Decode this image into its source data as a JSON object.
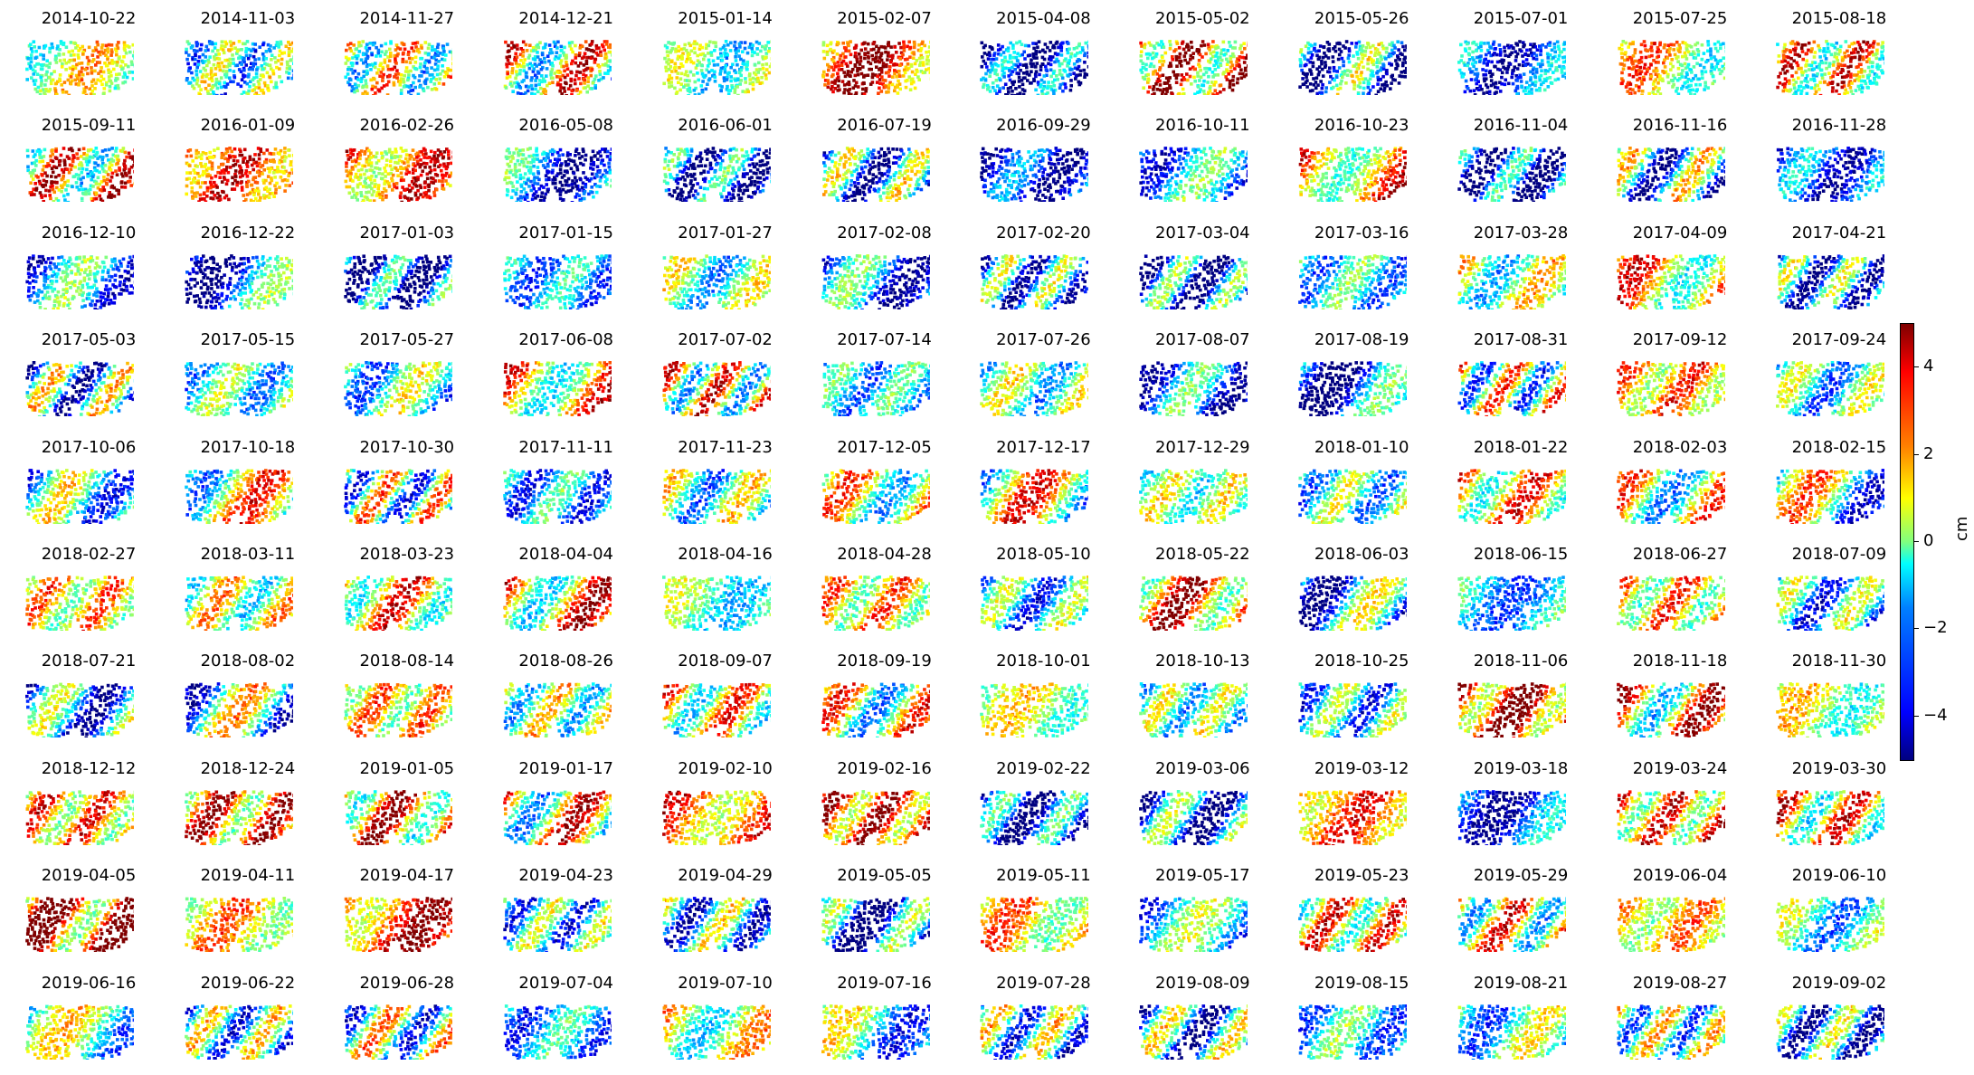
{
  "chart_data": {
    "type": "heatmap",
    "colormap": "jet",
    "grid": false,
    "panel_titles": [
      "2014-10-22",
      "2014-11-03",
      "2014-11-27",
      "2014-12-21",
      "2015-01-14",
      "2015-02-07",
      "2015-04-08",
      "2015-05-02",
      "2015-05-26",
      "2015-07-01",
      "2015-07-25",
      "2015-08-18",
      "2015-09-11",
      "2016-01-09",
      "2016-02-26",
      "2016-05-08",
      "2016-06-01",
      "2016-07-19",
      "2016-09-29",
      "2016-10-11",
      "2016-10-23",
      "2016-11-04",
      "2016-11-16",
      "2016-11-28",
      "2016-12-10",
      "2016-12-22",
      "2017-01-03",
      "2017-01-15",
      "2017-01-27",
      "2017-02-08",
      "2017-02-20",
      "2017-03-04",
      "2017-03-16",
      "2017-03-28",
      "2017-04-09",
      "2017-04-21",
      "2017-05-03",
      "2017-05-15",
      "2017-05-27",
      "2017-06-08",
      "2017-07-02",
      "2017-07-14",
      "2017-07-26",
      "2017-08-07",
      "2017-08-19",
      "2017-08-31",
      "2017-09-12",
      "2017-09-24",
      "2017-10-06",
      "2017-10-18",
      "2017-10-30",
      "2017-11-11",
      "2017-11-23",
      "2017-12-05",
      "2017-12-17",
      "2017-12-29",
      "2018-01-10",
      "2018-01-22",
      "2018-02-03",
      "2018-02-15",
      "2018-02-27",
      "2018-03-11",
      "2018-03-23",
      "2018-04-04",
      "2018-04-16",
      "2018-04-28",
      "2018-05-10",
      "2018-05-22",
      "2018-06-03",
      "2018-06-15",
      "2018-06-27",
      "2018-07-09",
      "2018-07-21",
      "2018-08-02",
      "2018-08-14",
      "2018-08-26",
      "2018-09-07",
      "2018-09-19",
      "2018-10-01",
      "2018-10-13",
      "2018-10-25",
      "2018-11-06",
      "2018-11-18",
      "2018-11-30",
      "2018-12-12",
      "2018-12-24",
      "2019-01-05",
      "2019-01-17",
      "2019-02-10",
      "2019-02-16",
      "2019-02-22",
      "2019-03-06",
      "2019-03-12",
      "2019-03-18",
      "2019-03-24",
      "2019-03-30",
      "2019-04-05",
      "2019-04-11",
      "2019-04-17",
      "2019-04-23",
      "2019-04-29",
      "2019-05-05",
      "2019-05-11",
      "2019-05-17",
      "2019-05-23",
      "2019-05-29",
      "2019-06-04",
      "2019-06-10",
      "2019-06-16",
      "2019-06-22",
      "2019-06-28",
      "2019-07-04",
      "2019-07-10",
      "2019-07-16",
      "2019-07-28",
      "2019-08-09",
      "2019-08-15",
      "2019-08-21",
      "2019-08-27",
      "2019-09-02"
    ],
    "panel_mean_cm": [
      0.5,
      -1.0,
      0.5,
      1.0,
      -0.5,
      3.0,
      -3.5,
      2.5,
      -2.5,
      -3.0,
      1.0,
      1.5,
      1.5,
      3.0,
      2.5,
      -2.5,
      -3.0,
      -2.0,
      -3.5,
      -2.0,
      2.0,
      -3.5,
      -1.5,
      -3.0,
      -2.0,
      -2.5,
      -3.5,
      -2.0,
      -0.5,
      -2.5,
      -2.0,
      -3.0,
      -1.5,
      0.0,
      1.5,
      -2.0,
      -1.5,
      -1.0,
      -1.0,
      1.5,
      1.0,
      -1.5,
      -0.5,
      -2.5,
      -3.0,
      0.0,
      2.0,
      -1.0,
      -1.0,
      0.5,
      -0.5,
      -2.0,
      -0.5,
      0.5,
      0.5,
      0.0,
      -1.0,
      1.5,
      0.5,
      -0.5,
      1.5,
      0.5,
      1.5,
      1.5,
      -0.5,
      1.5,
      -1.5,
      2.5,
      -2.0,
      -1.5,
      1.5,
      -1.5,
      -2.0,
      -1.0,
      1.5,
      0.0,
      1.0,
      0.5,
      0.5,
      -0.5,
      -1.5,
      3.5,
      1.5,
      0.5,
      2.0,
      2.5,
      2.0,
      1.0,
      2.5,
      3.0,
      -3.0,
      -2.5,
      2.5,
      -3.0,
      2.0,
      1.5,
      3.5,
      1.5,
      3.0,
      -1.5,
      -1.5,
      -3.0,
      1.5,
      -1.5,
      1.5,
      1.0,
      1.5,
      -1.0,
      -0.5,
      -1.0,
      -0.5,
      -2.0,
      0.5,
      -1.0,
      -1.0,
      -2.0,
      -1.5,
      -1.0,
      -0.5,
      -2.0
    ],
    "colorbar": {
      "label": "cm",
      "range": [
        -5,
        5
      ],
      "ticks": [
        4,
        2,
        0,
        -2,
        -4
      ],
      "tick_labels": [
        "4",
        "2",
        "0",
        "−2",
        "−4"
      ]
    },
    "layout": {
      "rows": 10,
      "cols": 12
    }
  }
}
